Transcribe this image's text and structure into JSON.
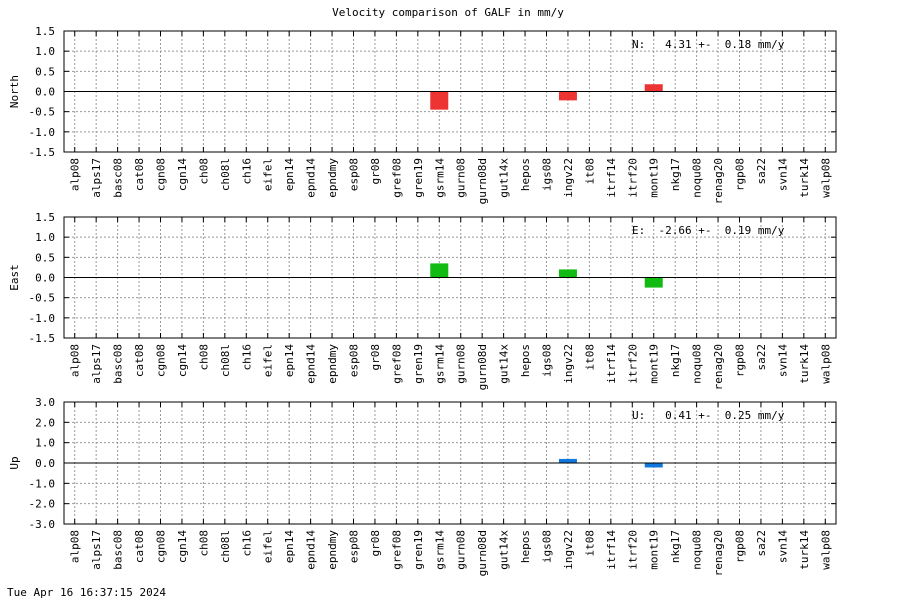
{
  "title": "Velocity comparison of GALF in mm/y",
  "footer": "Tue Apr 16 16:37:15 2024",
  "colors": {
    "north": "#ee3333",
    "east": "#11bb11",
    "up": "#1177dd",
    "grid": "#999999",
    "axis": "#000000"
  },
  "chart_data": [
    {
      "type": "bar",
      "ylabel": "North",
      "annotation": "N:   4.31 +-  0.18 mm/y",
      "ylim": [
        -1.5,
        1.5
      ],
      "yticks": [
        "-1.5",
        "-1.0",
        "-0.5",
        "0.0",
        "0.5",
        "1.0",
        "1.5"
      ],
      "grid": true,
      "color": "#ee3333",
      "categories": [
        "alp08",
        "alps17",
        "basc08",
        "cat08",
        "cgn08",
        "cgn14",
        "ch08",
        "ch08l",
        "ch16",
        "eifel",
        "epn14",
        "epnd14",
        "epndmy",
        "esp08",
        "gr08",
        "gref08",
        "gren19",
        "gsrm14",
        "gurn08",
        "gurn08d",
        "gut14x",
        "hepos",
        "igs08",
        "ingv22",
        "it08",
        "itrf14",
        "itrf20",
        "mont19",
        "nkg17",
        "noqu08",
        "renag20",
        "rgp08",
        "sa22",
        "svn14",
        "turk14",
        "walp08"
      ],
      "values": [
        null,
        null,
        null,
        null,
        null,
        null,
        null,
        null,
        null,
        null,
        null,
        null,
        null,
        null,
        null,
        null,
        null,
        -0.45,
        null,
        null,
        null,
        null,
        null,
        -0.22,
        null,
        null,
        null,
        0.18,
        null,
        null,
        null,
        null,
        null,
        null,
        null,
        null
      ]
    },
    {
      "type": "bar",
      "ylabel": "East",
      "annotation": "E:  -2.66 +-  0.19 mm/y",
      "ylim": [
        -1.5,
        1.5
      ],
      "yticks": [
        "-1.5",
        "-1.0",
        "-0.5",
        "0.0",
        "0.5",
        "1.0",
        "1.5"
      ],
      "grid": true,
      "color": "#11bb11",
      "categories": [
        "alp08",
        "alps17",
        "basc08",
        "cat08",
        "cgn08",
        "cgn14",
        "ch08",
        "ch08l",
        "ch16",
        "eifel",
        "epn14",
        "epnd14",
        "epndmy",
        "esp08",
        "gr08",
        "gref08",
        "gren19",
        "gsrm14",
        "gurn08",
        "gurn08d",
        "gut14x",
        "hepos",
        "igs08",
        "ingv22",
        "it08",
        "itrf14",
        "itrf20",
        "mont19",
        "nkg17",
        "noqu08",
        "renag20",
        "rgp08",
        "sa22",
        "svn14",
        "turk14",
        "walp08"
      ],
      "values": [
        null,
        null,
        null,
        null,
        null,
        null,
        null,
        null,
        null,
        null,
        null,
        null,
        null,
        null,
        null,
        null,
        null,
        0.35,
        null,
        null,
        null,
        null,
        null,
        0.2,
        null,
        null,
        null,
        -0.25,
        null,
        null,
        null,
        null,
        null,
        null,
        null,
        null
      ]
    },
    {
      "type": "bar",
      "ylabel": "Up",
      "annotation": "U:   0.41 +-  0.25 mm/y",
      "ylim": [
        -3.0,
        3.0
      ],
      "yticks": [
        "-3.0",
        "-2.0",
        "-1.0",
        "0.0",
        "1.0",
        "2.0",
        "3.0"
      ],
      "grid": true,
      "color": "#1177dd",
      "categories": [
        "alp08",
        "alps17",
        "basc08",
        "cat08",
        "cgn08",
        "cgn14",
        "ch08",
        "ch08l",
        "ch16",
        "eifel",
        "epn14",
        "epnd14",
        "epndmy",
        "esp08",
        "gr08",
        "gref08",
        "gren19",
        "gsrm14",
        "gurn08",
        "gurn08d",
        "gut14x",
        "hepos",
        "igs08",
        "ingv22",
        "it08",
        "itrf14",
        "itrf20",
        "mont19",
        "nkg17",
        "noqu08",
        "renag20",
        "rgp08",
        "sa22",
        "svn14",
        "turk14",
        "walp08"
      ],
      "values": [
        null,
        null,
        null,
        null,
        null,
        null,
        null,
        null,
        null,
        null,
        null,
        null,
        null,
        null,
        null,
        null,
        null,
        null,
        null,
        null,
        null,
        null,
        null,
        0.2,
        null,
        null,
        null,
        -0.22,
        null,
        null,
        null,
        null,
        null,
        null,
        null,
        null
      ]
    }
  ]
}
